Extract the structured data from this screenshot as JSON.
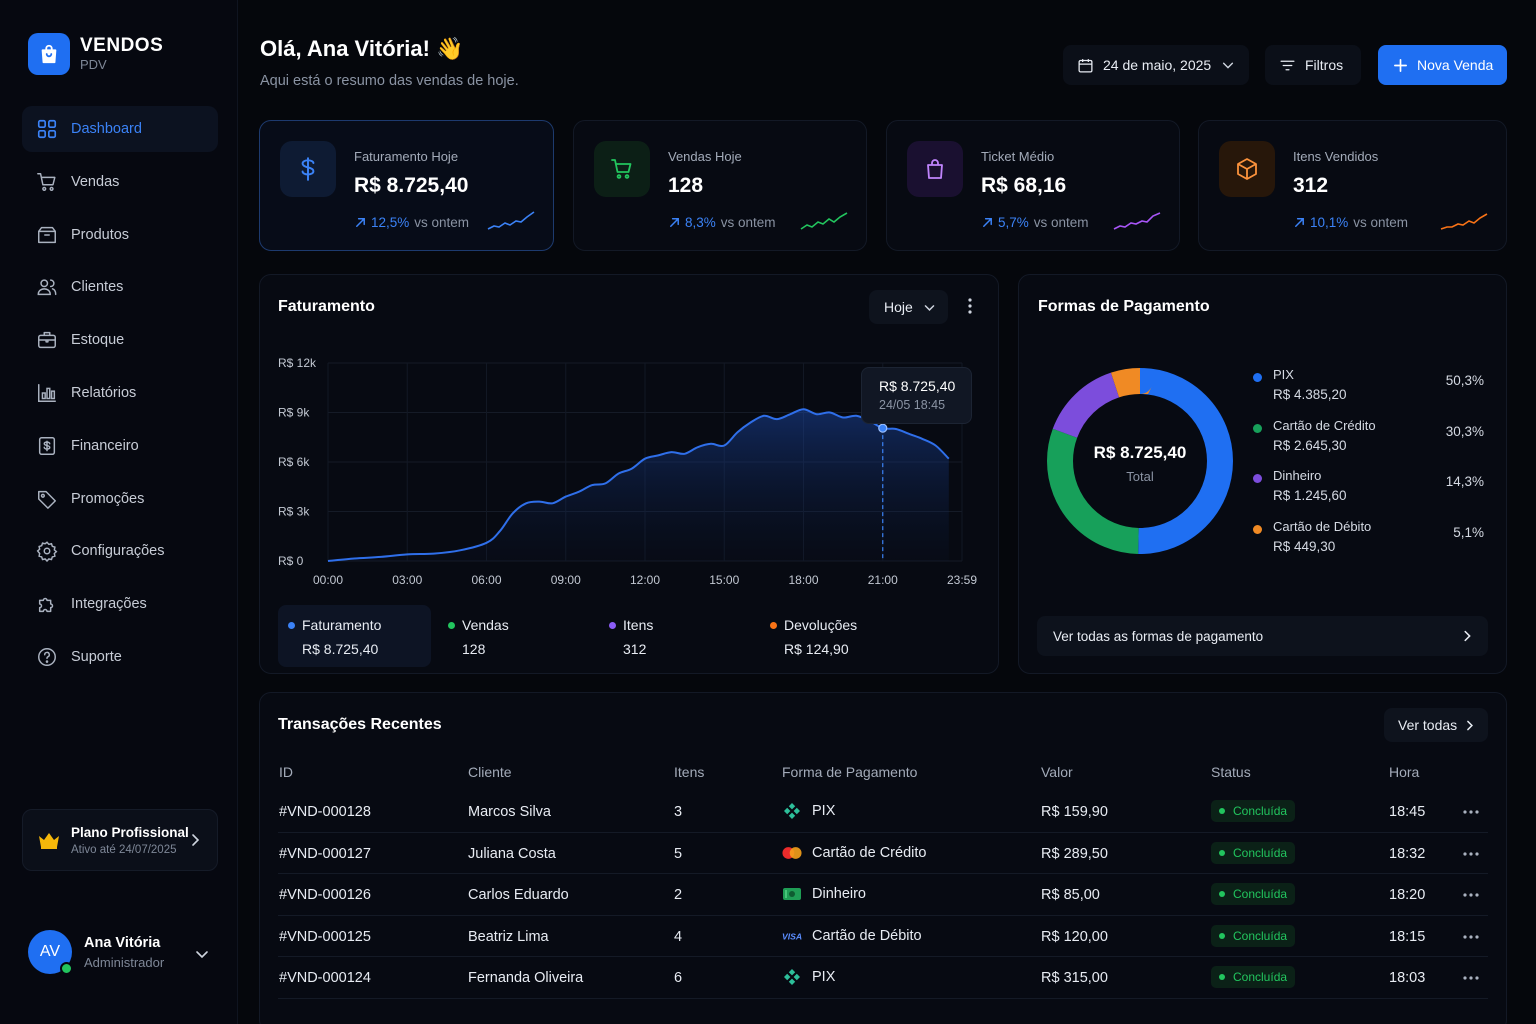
{
  "brand": {
    "title": "VENDOS",
    "subtitle": "PDV"
  },
  "nav": [
    {
      "label": "Dashboard",
      "icon": "grid-icon",
      "active": true
    },
    {
      "label": "Vendas",
      "icon": "cart-icon"
    },
    {
      "label": "Produtos",
      "icon": "box-icon"
    },
    {
      "label": "Clientes",
      "icon": "users-icon"
    },
    {
      "label": "Estoque",
      "icon": "briefcase-icon"
    },
    {
      "label": "Relatórios",
      "icon": "bar-chart-icon"
    },
    {
      "label": "Financeiro",
      "icon": "dollar-icon"
    },
    {
      "label": "Promoções",
      "icon": "tag-icon"
    },
    {
      "label": "Configurações",
      "icon": "gear-icon"
    },
    {
      "label": "Integrações",
      "icon": "puzzle-icon"
    },
    {
      "label": "Suporte",
      "icon": "help-icon"
    }
  ],
  "plan": {
    "title": "Plano Profissional",
    "subtitle": "Ativo até 24/07/2025"
  },
  "user": {
    "initials": "AV",
    "name": "Ana Vitória",
    "role": "Administrador"
  },
  "header": {
    "title": "Olá, Ana Vitória! 👋",
    "subtitle": "Aqui está o resumo das vendas de hoje.",
    "date": "24 de maio, 2025",
    "filters": "Filtros",
    "new_sale": "Nova Venda"
  },
  "kpis": [
    {
      "label": "Faturamento Hoje",
      "value": "R$ 8.725,40",
      "pct": "12,5%",
      "suffix": "vs ontem",
      "color": "#3b82f6",
      "icon": "dollar-icon"
    },
    {
      "label": "Vendas Hoje",
      "value": "128",
      "pct": "8,3%",
      "suffix": "vs ontem",
      "color": "#22c55e",
      "icon": "cart-icon"
    },
    {
      "label": "Ticket Médio",
      "value": "R$ 68,16",
      "pct": "5,7%",
      "suffix": "vs ontem",
      "color": "#a855f7",
      "icon": "bag-icon"
    },
    {
      "label": "Itens Vendidos",
      "value": "312",
      "pct": "10,1%",
      "suffix": "vs ontem",
      "color": "#f97316",
      "icon": "package-icon"
    }
  ],
  "revenue": {
    "title": "Faturamento",
    "period": "Hoje",
    "tooltip": {
      "value": "R$ 8.725,40",
      "time": "24/05 18:45"
    },
    "legend": [
      {
        "name": "Faturamento",
        "value": "R$ 8.725,40",
        "color": "#3b82f6"
      },
      {
        "name": "Vendas",
        "value": "128",
        "color": "#22c55e"
      },
      {
        "name": "Itens",
        "value": "312",
        "color": "#8b5cf6"
      },
      {
        "name": "Devoluções",
        "value": "R$ 124,90",
        "color": "#f97316"
      }
    ]
  },
  "chart_data": {
    "type": "area",
    "title": "Faturamento",
    "x_ticks": [
      "00:00",
      "03:00",
      "06:00",
      "09:00",
      "12:00",
      "15:00",
      "18:00",
      "21:00",
      "23:59"
    ],
    "y_ticks": [
      "R$ 0",
      "R$ 3k",
      "R$ 6k",
      "R$ 9k",
      "R$ 12k"
    ],
    "ylim": [
      0,
      12000
    ],
    "xlim_hours": [
      0,
      24
    ],
    "series": [
      {
        "name": "Faturamento",
        "x_hours": [
          0,
          1,
          2,
          3,
          4,
          5,
          6,
          6.5,
          7,
          7.5,
          8,
          8.5,
          9,
          9.5,
          10,
          10.5,
          11,
          11.5,
          12,
          12.5,
          13,
          13.5,
          14,
          14.5,
          15,
          15.5,
          16,
          16.5,
          17,
          17.5,
          18,
          18.5,
          19,
          19.5,
          20,
          20.5,
          21,
          21.5,
          22,
          22.5,
          23,
          23.5
        ],
        "values": [
          0,
          150,
          250,
          400,
          450,
          650,
          1100,
          1800,
          2900,
          3500,
          3600,
          3500,
          3900,
          4200,
          4600,
          4700,
          5300,
          5600,
          6200,
          6400,
          6600,
          6500,
          6900,
          7100,
          7000,
          7800,
          8400,
          8800,
          8600,
          8900,
          9200,
          8900,
          9000,
          8700,
          8800,
          8500,
          8050,
          8000,
          7700,
          7400,
          7000,
          6200
        ]
      }
    ],
    "marker": {
      "x_hours": 21,
      "value": 8050
    },
    "grid": true
  },
  "payments": {
    "title": "Formas de Pagamento",
    "total_value": "R$ 8.725,40",
    "total_label": "Total",
    "items": [
      {
        "name": "PIX",
        "amount": "R$ 4.385,20",
        "pct": "50,3%",
        "share": 50.3,
        "color": "#1f6ff2"
      },
      {
        "name": "Cartão de Crédito",
        "amount": "R$ 2.645,30",
        "pct": "30,3%",
        "share": 30.3,
        "color": "#17a05a"
      },
      {
        "name": "Dinheiro",
        "amount": "R$ 1.245,60",
        "pct": "14,3%",
        "share": 14.3,
        "color": "#7c4ddc"
      },
      {
        "name": "Cartão de Débito",
        "amount": "R$ 449,30",
        "pct": "5,1%",
        "share": 5.1,
        "color": "#f08a24"
      }
    ],
    "link": "Ver todas as formas de pagamento"
  },
  "transactions": {
    "title": "Transações Recentes",
    "view_all": "Ver todas",
    "columns": [
      "ID",
      "Cliente",
      "Itens",
      "Forma de Pagamento",
      "Valor",
      "Status",
      "Hora"
    ],
    "rows": [
      {
        "id": "#VND-000128",
        "client": "Marcos Silva",
        "items": "3",
        "method": "PIX",
        "method_icon": "pix-icon",
        "value": "R$ 159,90",
        "status": "Concluída",
        "time": "18:45"
      },
      {
        "id": "#VND-000127",
        "client": "Juliana Costa",
        "items": "5",
        "method": "Cartão de Crédito",
        "method_icon": "mastercard-icon",
        "value": "R$ 289,50",
        "status": "Concluída",
        "time": "18:32"
      },
      {
        "id": "#VND-000126",
        "client": "Carlos Eduardo",
        "items": "2",
        "method": "Dinheiro",
        "method_icon": "cash-icon",
        "value": "R$ 85,00",
        "status": "Concluída",
        "time": "18:20"
      },
      {
        "id": "#VND-000125",
        "client": "Beatriz Lima",
        "items": "4",
        "method": "Cartão de Débito",
        "method_icon": "visa-icon",
        "value": "R$ 120,00",
        "status": "Concluída",
        "time": "18:15"
      },
      {
        "id": "#VND-000124",
        "client": "Fernanda Oliveira",
        "items": "6",
        "method": "PIX",
        "method_icon": "pix-icon",
        "value": "R$ 315,00",
        "status": "Concluída",
        "time": "18:03"
      }
    ]
  }
}
